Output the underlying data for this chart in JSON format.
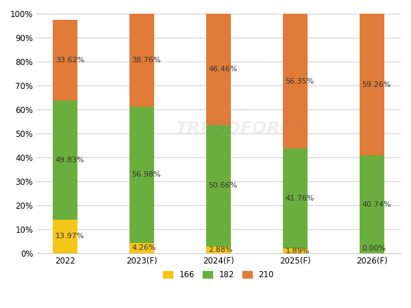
{
  "categories": [
    "2022",
    "2023(F)",
    "2024(F)",
    "2025(F)",
    "2026(F)"
  ],
  "series_166": [
    13.97,
    4.26,
    2.88,
    1.89,
    0.0
  ],
  "series_182": [
    49.83,
    56.98,
    50.66,
    41.76,
    40.74
  ],
  "series_210": [
    33.62,
    38.76,
    46.46,
    56.35,
    59.26
  ],
  "color_166": "#F5C518",
  "color_182": "#6AAF3D",
  "color_210": "#E07B39",
  "bar_width": 0.32,
  "ylim": [
    0,
    100
  ],
  "yticks": [
    0,
    10,
    20,
    30,
    40,
    50,
    60,
    70,
    80,
    90,
    100
  ],
  "ytick_labels": [
    "0%",
    "10%",
    "20%",
    "30%",
    "40%",
    "50%",
    "60%",
    "70%",
    "80%",
    "90%",
    "100%"
  ],
  "legend_labels": [
    "166",
    "182",
    "210"
  ],
  "label_fontsize": 8.0,
  "tick_fontsize": 8.5,
  "legend_fontsize": 8.5,
  "bg_color": "#FFFFFF",
  "grid_color": "#CCCCCC",
  "watermark_alpha": 0.13
}
